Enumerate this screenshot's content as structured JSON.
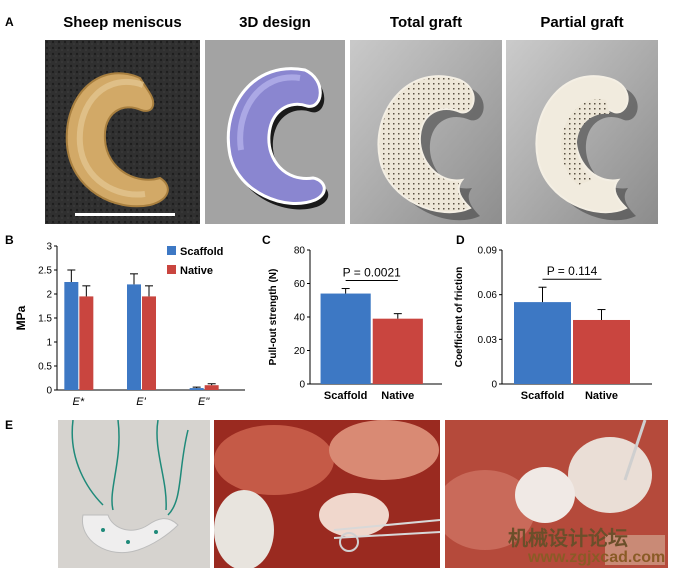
{
  "panels": {
    "a": {
      "letter": "A",
      "titles": [
        "Sheep meniscus",
        "3D design",
        "Total graft",
        "Partial graft"
      ]
    },
    "b": {
      "letter": "B"
    },
    "c": {
      "letter": "C"
    },
    "d": {
      "letter": "D"
    },
    "e": {
      "letter": "E"
    }
  },
  "colors": {
    "scaffold": "#3d78c4",
    "native": "#c9453f"
  },
  "watermark": {
    "line1": "机械设计论坛",
    "line2": "www.zgjxcad.com"
  },
  "chart_data": [
    {
      "id": "B",
      "type": "bar",
      "categories": [
        "E*",
        "E'",
        "E\""
      ],
      "series": [
        {
          "name": "Scaffold",
          "values": [
            2.25,
            2.2,
            0.04
          ],
          "errors": [
            0.25,
            0.22,
            0.02
          ]
        },
        {
          "name": "Native",
          "values": [
            1.95,
            1.95,
            0.1
          ],
          "errors": [
            0.22,
            0.22,
            0.03
          ]
        }
      ],
      "ylabel": "MPa",
      "ylim": [
        0,
        3
      ],
      "yticks": [
        "0",
        "0.5",
        "1",
        "1.5",
        "2",
        "2.5",
        "3"
      ],
      "legend": "top-right"
    },
    {
      "id": "C",
      "type": "bar",
      "categories": [
        "Scaffold",
        "Native"
      ],
      "values": [
        54,
        39
      ],
      "errors": [
        3,
        3
      ],
      "ylabel": "Pull-out strength (N)",
      "ylim": [
        0,
        80
      ],
      "yticks": [
        "0",
        "20",
        "40",
        "60",
        "80"
      ],
      "annotation": "P = 0.0021"
    },
    {
      "id": "D",
      "type": "bar",
      "categories": [
        "Scaffold",
        "Native"
      ],
      "values": [
        0.055,
        0.043
      ],
      "errors": [
        0.01,
        0.007
      ],
      "ylabel": "Coefficient of friction",
      "ylim": [
        0,
        0.09
      ],
      "yticks": [
        "0",
        "0.03",
        "0.06",
        "0.09"
      ],
      "annotation": "P = 0.114"
    }
  ]
}
